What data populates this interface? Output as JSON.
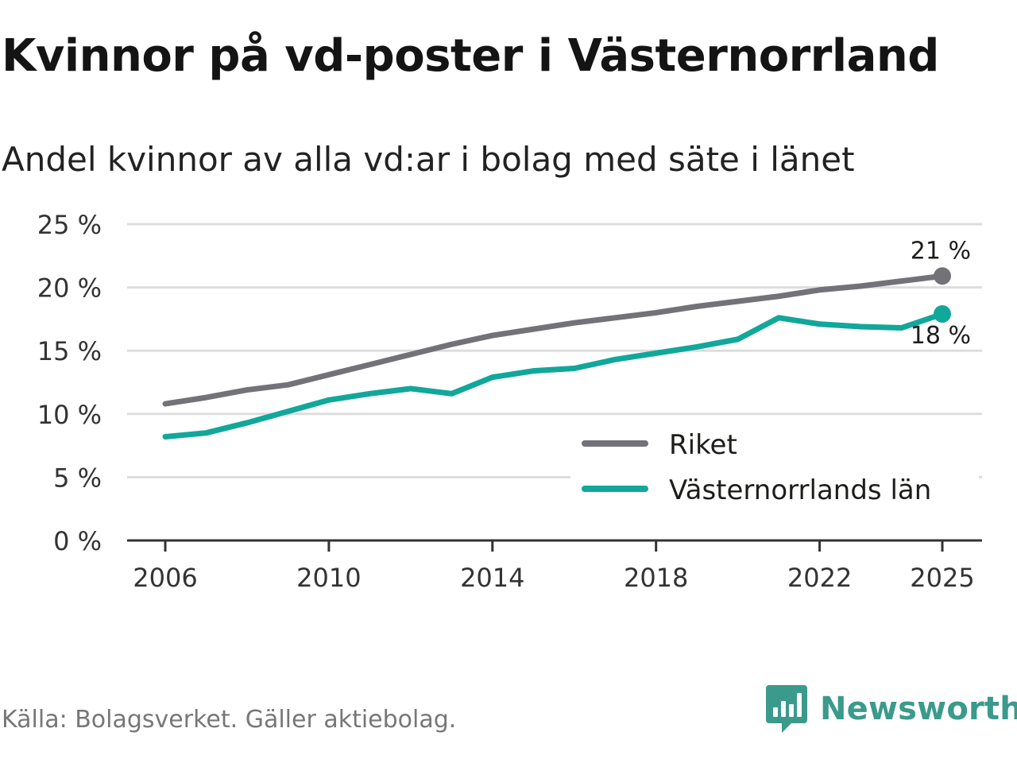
{
  "title": "Kvinnor på vd-poster i Västernorrland",
  "subtitle": "Andel kvinnor av alla vd:ar i bolag med säte i länet",
  "source": "Källa: Bolagsverket. Gäller aktiebolag.",
  "brand": {
    "name": "Newsworthy",
    "icon": "newsworthy-logo-icon",
    "color": "#3a9a8c"
  },
  "colors": {
    "riket": "#737279",
    "lan": "#11a79b",
    "grid": "#dddddd",
    "axis": "#333333"
  },
  "chart_data": {
    "type": "line",
    "title": "Kvinnor på vd-poster i Västernorrland",
    "xlabel": "",
    "ylabel": "",
    "x": [
      2006,
      2007,
      2008,
      2009,
      2010,
      2011,
      2012,
      2013,
      2014,
      2015,
      2016,
      2017,
      2018,
      2019,
      2020,
      2021,
      2022,
      2023,
      2024,
      2025
    ],
    "series": [
      {
        "name": "Riket",
        "values": [
          10.8,
          11.3,
          11.9,
          12.3,
          13.1,
          13.9,
          14.7,
          15.5,
          16.2,
          16.7,
          17.2,
          17.6,
          18.0,
          18.5,
          18.9,
          19.3,
          19.8,
          20.1,
          20.5,
          20.9
        ],
        "end_label": "21 %"
      },
      {
        "name": "Västernorrlands län",
        "values": [
          8.2,
          8.5,
          9.3,
          10.2,
          11.1,
          11.6,
          12.0,
          11.6,
          12.9,
          13.4,
          13.6,
          14.3,
          14.8,
          15.3,
          15.9,
          17.6,
          17.1,
          16.9,
          16.8,
          17.9
        ],
        "end_label": "18 %"
      }
    ],
    "ylim": [
      0,
      25
    ],
    "yticks": [
      0,
      5,
      10,
      15,
      20,
      25
    ],
    "ytick_labels": [
      "0 %",
      "5 %",
      "10 %",
      "15 %",
      "20 %",
      "25 %"
    ],
    "xticks": [
      2006,
      2010,
      2014,
      2018,
      2022,
      2025
    ],
    "xtick_labels": [
      "2006",
      "2010",
      "2014",
      "2018",
      "2022",
      "2025"
    ],
    "grid": true,
    "legend": "bottom-right"
  }
}
